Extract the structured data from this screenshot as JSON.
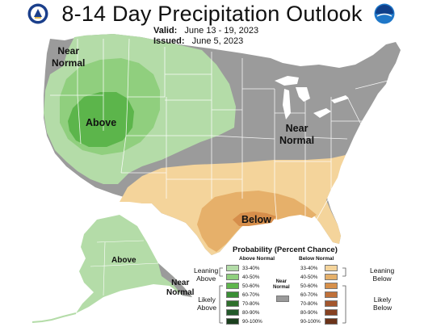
{
  "title": "8-14 Day Precipitation Outlook",
  "valid": {
    "label": "Valid:",
    "value": "June 13 - 19, 2023"
  },
  "issued": {
    "label": "Issued:",
    "value": "June 5, 2023"
  },
  "map_labels": {
    "near_normal_nw": [
      "Near",
      "Normal"
    ],
    "above_west": "Above",
    "near_normal_east": [
      "Near",
      "Normal"
    ],
    "below_gulf": "Below",
    "above_alaska": "Above",
    "near_normal_alaska": [
      "Near",
      "Normal"
    ]
  },
  "legend": {
    "title": "Probability (Percent Chance)",
    "above_header": "Above Normal",
    "below_header": "Below Normal",
    "near_normal_label": [
      "Near",
      "Normal"
    ],
    "leaning_above": [
      "Leaning",
      "Above"
    ],
    "likely_above": [
      "Likely",
      "Above"
    ],
    "leaning_below": [
      "Leaning",
      "Below"
    ],
    "likely_below": [
      "Likely",
      "Below"
    ],
    "ranges": [
      "33-40%",
      "40-50%",
      "50-60%",
      "60-70%",
      "70-80%",
      "80-90%",
      "90-100%"
    ],
    "above_colors": [
      "#b3dca8",
      "#8fcf7d",
      "#5fb64d",
      "#3a8f35",
      "#2e6f2c",
      "#22592a",
      "#1a3f1d"
    ],
    "below_colors": [
      "#f4d49b",
      "#e5b06a",
      "#d7904a",
      "#c0713a",
      "#a3562d",
      "#864121",
      "#6b3319"
    ],
    "near_normal_color": "#9a9a9a"
  },
  "colors": {
    "near_normal": "#9b9b9b",
    "above_33_40": "#b4dca8",
    "above_40_50": "#90cf7e",
    "above_50_60": "#5cb54b",
    "below_33_40": "#f4d49b",
    "below_40_50": "#e6b06a",
    "below_50_60": "#d68e4b",
    "state_lines": "#ffffff"
  }
}
